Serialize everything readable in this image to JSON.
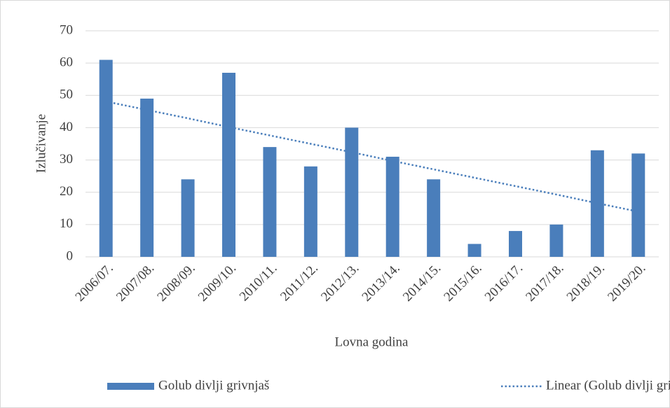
{
  "chart_data": {
    "type": "bar",
    "x_label": "Lovna godina",
    "y_label": "Izlučivanje",
    "categories": [
      "2006/07.",
      "2007/08.",
      "2008/09.",
      "2009/10.",
      "2010/11.",
      "2011/12.",
      "2012/13.",
      "2013/14.",
      "2014/15.",
      "2015/16.",
      "2016/17.",
      "2017/18.",
      "2018/19.",
      "2019/20."
    ],
    "series": [
      {
        "name": "Golub divlji grivnjaš",
        "type": "bar",
        "color": "#4a7ebb",
        "values": [
          61,
          49,
          24,
          57,
          34,
          28,
          40,
          31,
          24,
          4,
          8,
          10,
          33,
          32
        ]
      },
      {
        "name": "Linear (Golub divlji grivnjaš)",
        "type": "line",
        "color": "#4a7ebb",
        "values": [
          48.1,
          45.5,
          42.9,
          40.2,
          37.6,
          35.0,
          32.4,
          29.7,
          27.1,
          24.5,
          21.9,
          19.3,
          16.6,
          14.0
        ]
      }
    ],
    "ylim": [
      0,
      70
    ],
    "yticks": [
      0,
      10,
      20,
      30,
      40,
      50,
      60,
      70
    ],
    "grid": true,
    "legend": "bottom"
  }
}
